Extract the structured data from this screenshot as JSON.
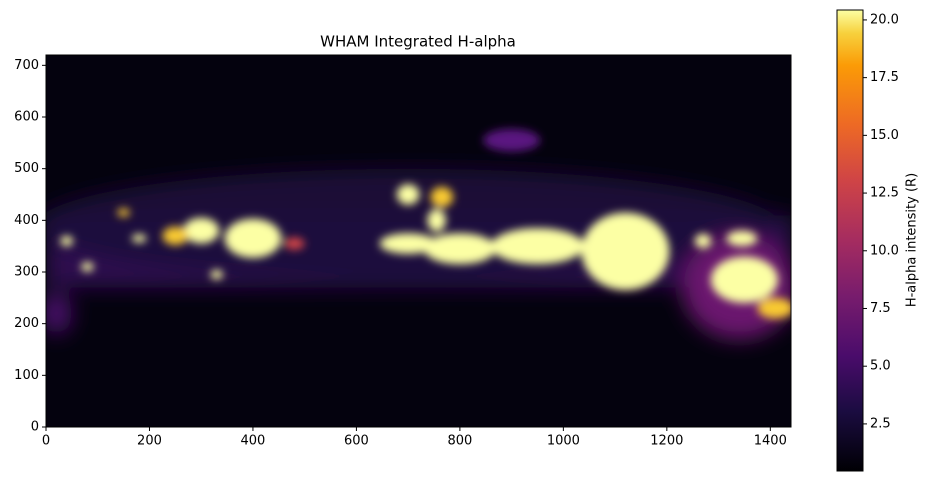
{
  "chart_data": {
    "type": "heatmap",
    "title": "WHAM Integrated H-alpha",
    "xlim": [
      0,
      1440
    ],
    "ylim": [
      0,
      720
    ],
    "xticks": [
      0,
      200,
      400,
      600,
      800,
      1000,
      1200,
      1400
    ],
    "yticks": [
      0,
      100,
      200,
      300,
      400,
      500,
      600,
      700
    ],
    "colormap": "inferno",
    "colorbar": {
      "label": "H-alpha intensity (R)",
      "lim": [
        0.46,
        20.43
      ],
      "ticks": [
        2.5,
        {
          "value": 5,
          "label": "5.0"
        },
        7.5,
        {
          "value": 10,
          "label": "10.0"
        },
        12.5,
        {
          "value": 15,
          "label": "15.0"
        },
        17.5,
        {
          "value": 20,
          "label": "20.0"
        }
      ]
    }
  }
}
